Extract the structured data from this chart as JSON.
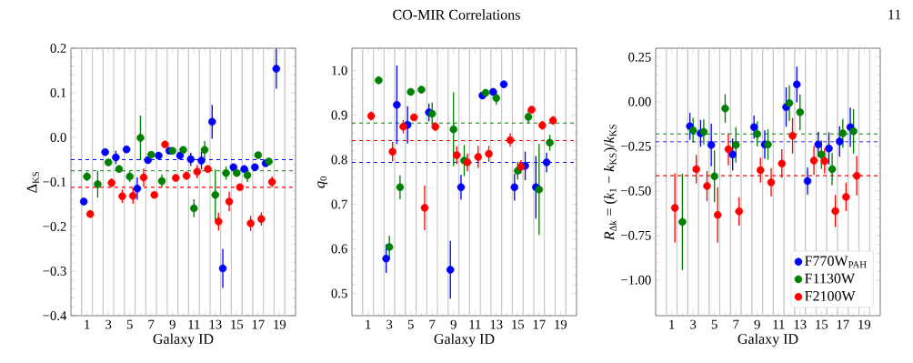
{
  "chart_data": [
    {
      "type": "scatter",
      "xlabel": "Galaxy ID",
      "ylabel": "Δ$_{KS}$",
      "xlim": [
        -0.5,
        20.5
      ],
      "ylim": [
        -0.4,
        0.2
      ],
      "xticks": [
        1,
        3,
        5,
        7,
        9,
        11,
        13,
        15,
        17,
        19
      ],
      "yticks": [
        {
          "value": -0.4,
          "label": "−0.4"
        },
        {
          "value": -0.3,
          "label": "−0.3"
        },
        {
          "value": -0.2,
          "label": "−0.2"
        },
        {
          "value": -0.1,
          "label": "−0.1"
        },
        {
          "value": 0,
          "label": "0.0"
        },
        {
          "value": 0.1,
          "label": "0.1"
        },
        {
          "value": 0.2,
          "label": "0.2"
        }
      ],
      "series": [
        {
          "color": "#0000ff",
          "x": [
            0.7,
            2.7,
            3.7,
            4.7,
            5.7,
            6.7,
            7.7,
            8.7,
            9.7,
            10.7,
            11.7,
            12.7,
            13.7,
            14.7,
            15.7,
            16.7,
            17.7,
            18.7
          ],
          "values": [
            -0.144,
            -0.033,
            -0.045,
            -0.027,
            -0.115,
            -0.051,
            -0.041,
            -0.03,
            -0.041,
            -0.049,
            -0.052,
            0.035,
            -0.294,
            -0.067,
            -0.071,
            -0.067,
            -0.058,
            0.154
          ],
          "errors": [
            0.008,
            0.006,
            0.015,
            0.008,
            0.025,
            0.008,
            0.006,
            0.006,
            0.008,
            0.015,
            0.02,
            0.038,
            0.044,
            0.008,
            0.008,
            0.008,
            0.006,
            0.045
          ]
        },
        {
          "color": "#008000",
          "x": [
            1,
            2,
            3,
            4,
            5,
            6,
            7,
            8,
            9,
            10,
            11,
            12,
            13,
            14,
            15,
            16,
            17,
            18
          ],
          "values": [
            -0.088,
            -0.105,
            -0.056,
            -0.071,
            -0.088,
            -0.001,
            -0.039,
            -0.098,
            -0.03,
            -0.028,
            -0.159,
            -0.028,
            -0.129,
            -0.08,
            -0.08,
            -0.085,
            -0.04,
            -0.054
          ],
          "errors": [
            0.01,
            0.03,
            0.006,
            0.008,
            0.012,
            0.05,
            0.006,
            0.015,
            0.006,
            0.006,
            0.02,
            0.02,
            0.057,
            0.015,
            0.008,
            0.015,
            0.006,
            0.006
          ]
        },
        {
          "color": "#ff0000",
          "x": [
            1.3,
            3.3,
            4.3,
            5.3,
            6.3,
            7.3,
            8.3,
            9.3,
            10.3,
            11.3,
            12.3,
            13.3,
            14.3,
            15.3,
            16.3,
            17.3,
            18.3
          ],
          "values": [
            -0.172,
            -0.102,
            -0.132,
            -0.131,
            -0.09,
            -0.129,
            -0.016,
            -0.091,
            -0.086,
            -0.077,
            -0.071,
            -0.189,
            -0.144,
            -0.112,
            -0.193,
            -0.183,
            -0.1
          ],
          "errors": [
            0.008,
            0.01,
            0.015,
            0.018,
            0.02,
            0.006,
            0.006,
            0.008,
            0.01,
            0.015,
            0.008,
            0.02,
            0.022,
            0.008,
            0.017,
            0.015,
            0.012
          ]
        }
      ],
      "ref_lines": [
        {
          "axis": "x",
          "value": 0.5,
          "color": "#c8c8c8"
        },
        {
          "axis": "x",
          "value": 1.5,
          "color": "#c8c8c8"
        },
        {
          "axis": "x",
          "value": 2.5,
          "color": "#c8c8c8"
        },
        {
          "axis": "x",
          "value": 3.5,
          "color": "#c8c8c8"
        },
        {
          "axis": "x",
          "value": 4.5,
          "color": "#c8c8c8"
        },
        {
          "axis": "x",
          "value": 5.5,
          "color": "#c8c8c8"
        },
        {
          "axis": "x",
          "value": 6.5,
          "color": "#c8c8c8"
        },
        {
          "axis": "x",
          "value": 7.5,
          "color": "#c8c8c8"
        },
        {
          "axis": "x",
          "value": 8.5,
          "color": "#c8c8c8"
        },
        {
          "axis": "x",
          "value": 9.5,
          "color": "#c8c8c8"
        },
        {
          "axis": "x",
          "value": 10.5,
          "color": "#c8c8c8"
        },
        {
          "axis": "x",
          "value": 11.5,
          "color": "#c8c8c8"
        },
        {
          "axis": "x",
          "value": 12.5,
          "color": "#c8c8c8"
        },
        {
          "axis": "x",
          "value": 13.5,
          "color": "#c8c8c8"
        },
        {
          "axis": "x",
          "value": 14.5,
          "color": "#c8c8c8"
        },
        {
          "axis": "x",
          "value": 15.5,
          "color": "#c8c8c8"
        },
        {
          "axis": "x",
          "value": 16.5,
          "color": "#c8c8c8"
        },
        {
          "axis": "x",
          "value": 17.5,
          "color": "#c8c8c8"
        },
        {
          "axis": "x",
          "value": 18.5,
          "color": "#c8c8c8"
        },
        {
          "axis": "x",
          "value": 19.5,
          "color": "#c8c8c8"
        },
        {
          "axis": "y",
          "value": -0.05,
          "color": "#0000ff",
          "line_style": "dashed"
        },
        {
          "axis": "y",
          "value": -0.075,
          "color": "#008000",
          "line_style": "dashed"
        },
        {
          "axis": "y",
          "value": -0.112,
          "color": "#ff0000",
          "line_style": "dashed"
        }
      ]
    },
    {
      "type": "scatter",
      "title": "CO-MIR Correlations",
      "xlabel": "Galaxy ID",
      "ylabel": "*q*$_{0}$",
      "xlim": [
        -0.5,
        20.5
      ],
      "ylim": [
        0.45,
        1.05
      ],
      "xticks": [
        1,
        3,
        5,
        7,
        9,
        11,
        13,
        15,
        17,
        19
      ],
      "yticks": [
        0.5,
        0.6,
        0.7,
        0.8,
        0.9,
        {
          "value": 1,
          "label": "1.0"
        }
      ],
      "series": [
        {
          "color": "#0000ff",
          "x": [
            2.7,
            3.7,
            4.7,
            6.7,
            8.7,
            9.7,
            11.7,
            12.7,
            13.7,
            14.7,
            15.7,
            16.7,
            17.7
          ],
          "values": [
            0.578,
            0.923,
            0.878,
            0.906,
            0.553,
            0.738,
            0.944,
            0.952,
            0.969,
            0.738,
            0.786,
            0.738,
            0.794
          ],
          "errors": [
            0.032,
            0.088,
            0.042,
            0.02,
            0.065,
            0.028,
            0.008,
            0.008,
            0.008,
            0.03,
            0.032,
            0.07,
            0.022
          ]
        },
        {
          "color": "#008000",
          "x": [
            2,
            3,
            4,
            5,
            6,
            7,
            9,
            10,
            12,
            13,
            15,
            16,
            17,
            18
          ],
          "values": [
            0.978,
            0.604,
            0.738,
            0.952,
            0.957,
            0.903,
            0.868,
            0.798,
            0.95,
            0.938,
            0.775,
            0.896,
            0.733,
            0.838
          ],
          "errors": [
            0.008,
            0.025,
            0.027,
            0.008,
            0.008,
            0.025,
            0.083,
            0.035,
            0.008,
            0.015,
            0.02,
            0.015,
            0.102,
            0.018
          ]
        },
        {
          "color": "#ff0000",
          "x": [
            1.3,
            3.3,
            4.3,
            5.3,
            6.3,
            7.3,
            9.3,
            10.3,
            11.3,
            12.3,
            14.3,
            15.3,
            16.3,
            17.3,
            18.3
          ],
          "values": [
            0.898,
            0.818,
            0.874,
            0.895,
            0.692,
            0.874,
            0.81,
            0.794,
            0.806,
            0.813,
            0.844,
            0.784,
            0.912,
            0.877,
            0.888
          ],
          "errors": [
            0.01,
            0.022,
            0.015,
            0.008,
            0.05,
            0.01,
            0.02,
            0.02,
            0.025,
            0.018,
            0.015,
            0.015,
            0.008,
            0.01,
            0.01
          ]
        }
      ],
      "ref_lines": [
        {
          "axis": "x",
          "value": 0.5,
          "color": "#c8c8c8"
        },
        {
          "axis": "x",
          "value": 1.5,
          "color": "#c8c8c8"
        },
        {
          "axis": "x",
          "value": 2.5,
          "color": "#c8c8c8"
        },
        {
          "axis": "x",
          "value": 3.5,
          "color": "#c8c8c8"
        },
        {
          "axis": "x",
          "value": 4.5,
          "color": "#c8c8c8"
        },
        {
          "axis": "x",
          "value": 5.5,
          "color": "#c8c8c8"
        },
        {
          "axis": "x",
          "value": 6.5,
          "color": "#c8c8c8"
        },
        {
          "axis": "x",
          "value": 7.5,
          "color": "#c8c8c8"
        },
        {
          "axis": "x",
          "value": 8.5,
          "color": "#c8c8c8"
        },
        {
          "axis": "x",
          "value": 9.5,
          "color": "#c8c8c8"
        },
        {
          "axis": "x",
          "value": 10.5,
          "color": "#c8c8c8"
        },
        {
          "axis": "x",
          "value": 11.5,
          "color": "#c8c8c8"
        },
        {
          "axis": "x",
          "value": 12.5,
          "color": "#c8c8c8"
        },
        {
          "axis": "x",
          "value": 13.5,
          "color": "#c8c8c8"
        },
        {
          "axis": "x",
          "value": 14.5,
          "color": "#c8c8c8"
        },
        {
          "axis": "x",
          "value": 15.5,
          "color": "#c8c8c8"
        },
        {
          "axis": "x",
          "value": 16.5,
          "color": "#c8c8c8"
        },
        {
          "axis": "x",
          "value": 17.5,
          "color": "#c8c8c8"
        },
        {
          "axis": "x",
          "value": 18.5,
          "color": "#c8c8c8"
        },
        {
          "axis": "x",
          "value": 19.5,
          "color": "#c8c8c8"
        },
        {
          "axis": "y",
          "value": 0.794,
          "color": "#0000ff",
          "line_style": "dashed"
        },
        {
          "axis": "y",
          "value": 0.882,
          "color": "#008000",
          "line_style": "dashed"
        },
        {
          "axis": "y",
          "value": 0.843,
          "color": "#ff0000",
          "line_style": "dashed"
        }
      ]
    },
    {
      "type": "scatter",
      "xlabel": "Galaxy ID",
      "ylabel": "*R*$_{Δk}$ = (*k*$_{1}$ − *k*$_{KS}$)/*k*$_{KS}$",
      "xlim": [
        -0.5,
        20.5
      ],
      "ylim": [
        -1.2,
        0.3
      ],
      "legend": "bottom right",
      "annotations": [
        "11"
      ],
      "xticks": [
        1,
        3,
        5,
        7,
        9,
        11,
        13,
        15,
        17,
        19
      ],
      "yticks": [
        {
          "value": -1,
          "label": "−1.00"
        },
        {
          "value": -0.75,
          "label": "−0.75"
        },
        {
          "value": -0.5,
          "label": "−0.50"
        },
        {
          "value": -0.25,
          "label": "−0.25"
        },
        {
          "value": 0,
          "label": "0.00"
        },
        {
          "value": 0.25,
          "label": "0.25"
        }
      ],
      "series": [
        {
          "name": "F770W$_{PAH}$",
          "color": "#0000ff",
          "x": [
            2.7,
            3.7,
            4.7,
            6.7,
            8.7,
            9.7,
            11.7,
            12.7,
            13.7,
            14.7,
            15.7,
            16.7,
            17.7
          ],
          "values": [
            -0.138,
            -0.177,
            -0.242,
            -0.296,
            -0.143,
            -0.24,
            -0.03,
            0.097,
            -0.445,
            -0.24,
            -0.262,
            -0.223,
            -0.143
          ],
          "errors": [
            0.075,
            0.075,
            0.12,
            0.09,
            0.065,
            0.08,
            0.11,
            0.1,
            0.075,
            0.07,
            0.09,
            0.085,
            0.11
          ]
        },
        {
          "name": "F1130W",
          "color": "#008000",
          "x": [
            2,
            3,
            4,
            5,
            6,
            7,
            9,
            10,
            12,
            13,
            15,
            16,
            17,
            18
          ],
          "values": [
            -0.674,
            -0.16,
            -0.169,
            -0.418,
            -0.038,
            -0.242,
            -0.181,
            -0.24,
            -0.008,
            -0.059,
            -0.296,
            -0.378,
            -0.177,
            -0.166
          ],
          "errors": [
            0.27,
            0.07,
            0.07,
            0.145,
            0.08,
            0.1,
            0.07,
            0.085,
            0.1,
            0.1,
            0.08,
            0.09,
            0.08,
            0.125
          ]
        },
        {
          "name": "F2100W",
          "color": "#ff0000",
          "x": [
            1.3,
            3.3,
            4.3,
            5.3,
            6.3,
            7.3,
            9.3,
            10.3,
            11.3,
            12.3,
            14.3,
            15.3,
            16.3,
            17.3,
            18.3
          ],
          "values": [
            -0.596,
            -0.378,
            -0.473,
            -0.635,
            -0.267,
            -0.615,
            -0.384,
            -0.452,
            -0.347,
            -0.191,
            -0.33,
            -0.333,
            -0.613,
            -0.534,
            -0.415
          ],
          "errors": [
            0.195,
            0.08,
            0.085,
            0.155,
            0.09,
            0.08,
            0.07,
            0.08,
            0.08,
            0.1,
            0.08,
            0.07,
            0.09,
            0.08,
            0.11
          ]
        }
      ],
      "ref_lines": [
        {
          "axis": "x",
          "value": 0.5,
          "color": "#c8c8c8"
        },
        {
          "axis": "x",
          "value": 1.5,
          "color": "#c8c8c8"
        },
        {
          "axis": "x",
          "value": 2.5,
          "color": "#c8c8c8"
        },
        {
          "axis": "x",
          "value": 3.5,
          "color": "#c8c8c8"
        },
        {
          "axis": "x",
          "value": 4.5,
          "color": "#c8c8c8"
        },
        {
          "axis": "x",
          "value": 5.5,
          "color": "#c8c8c8"
        },
        {
          "axis": "x",
          "value": 6.5,
          "color": "#c8c8c8"
        },
        {
          "axis": "x",
          "value": 7.5,
          "color": "#c8c8c8"
        },
        {
          "axis": "x",
          "value": 8.5,
          "color": "#c8c8c8"
        },
        {
          "axis": "x",
          "value": 9.5,
          "color": "#c8c8c8"
        },
        {
          "axis": "x",
          "value": 10.5,
          "color": "#c8c8c8"
        },
        {
          "axis": "x",
          "value": 11.5,
          "color": "#c8c8c8"
        },
        {
          "axis": "x",
          "value": 12.5,
          "color": "#c8c8c8"
        },
        {
          "axis": "x",
          "value": 13.5,
          "color": "#c8c8c8"
        },
        {
          "axis": "x",
          "value": 14.5,
          "color": "#c8c8c8"
        },
        {
          "axis": "x",
          "value": 15.5,
          "color": "#c8c8c8"
        },
        {
          "axis": "x",
          "value": 16.5,
          "color": "#c8c8c8"
        },
        {
          "axis": "x",
          "value": 17.5,
          "color": "#c8c8c8"
        },
        {
          "axis": "x",
          "value": 18.5,
          "color": "#c8c8c8"
        },
        {
          "axis": "x",
          "value": 19.5,
          "color": "#c8c8c8"
        },
        {
          "axis": "y",
          "value": -0.225,
          "color": "#0000ff",
          "line_style": "dashed"
        },
        {
          "axis": "y",
          "value": -0.181,
          "color": "#008000",
          "line_style": "dashed"
        },
        {
          "axis": "y",
          "value": -0.415,
          "color": "#ff0000",
          "line_style": "dashed"
        }
      ]
    }
  ]
}
